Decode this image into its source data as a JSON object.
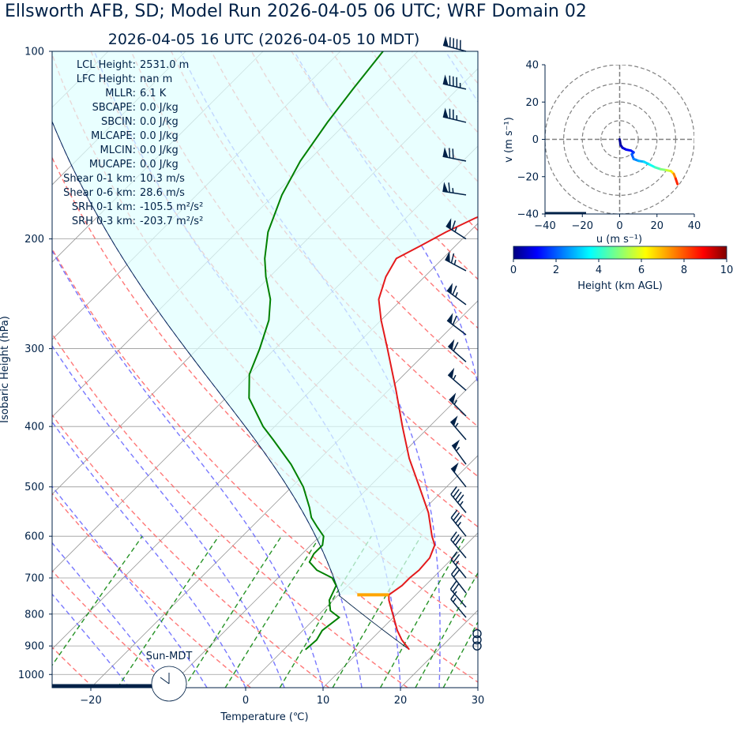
{
  "header": {
    "title": "Ellsworth AFB, SD; Model Run 2026-04-05 06 UTC; WRF Domain 02",
    "subtitle": "2026-04-05 16 UTC  (2026-04-05 10 MDT)"
  },
  "colors": {
    "text": "#002147",
    "temperature": "#e41a1c",
    "dewpoint": "#008000",
    "parcel": "#002147",
    "cape_fill": "#e0ffff",
    "dry_adiabat": "#ff6060",
    "moist_adiabat": "#6060ff",
    "mixing_ratio": "#008000",
    "isotherm": "#9a9a9a",
    "lcl_marker": "#ffa500"
  },
  "stats": [
    {
      "label": "LCL Height:",
      "value": "2531.0 m"
    },
    {
      "label": "LFC Height:",
      "value": "nan m"
    },
    {
      "label": "MLLR:",
      "value": "6.1 K"
    },
    {
      "label": "SBCAPE:",
      "value": "0.0 J/kg"
    },
    {
      "label": "SBCIN:",
      "value": "0.0 J/kg"
    },
    {
      "label": "MLCAPE:",
      "value": "0.0 J/kg"
    },
    {
      "label": "MLCIN:",
      "value": "0.0 J/kg"
    },
    {
      "label": "MUCAPE:",
      "value": "0.0 J/kg"
    },
    {
      "label": "Shear 0-1 km:",
      "value": "10.3 m/s"
    },
    {
      "label": "Shear 0-6 km:",
      "value": "28.6 m/s"
    },
    {
      "label": "SRH 0-1 km:",
      "value": "-105.5 m²/s²"
    },
    {
      "label": "SRH 0-3 km:",
      "value": "-203.7 m²/s²"
    }
  ],
  "clock_label": "Sun-MDT",
  "chart_data": [
    {
      "type": "line",
      "subtype": "skew-t",
      "xlabel": "Temperature (℃)",
      "ylabel": "Isobaric Height (hPa)",
      "xlim": [
        -25,
        30
      ],
      "ylim": [
        1050,
        100
      ],
      "x_ticks": [
        "−20",
        "0",
        "10",
        "20",
        "30"
      ],
      "x_tick_values": [
        -20,
        0,
        10,
        20,
        30
      ],
      "y_ticks": [
        "100",
        "200",
        "300",
        "400",
        "500",
        "600",
        "700",
        "800",
        "900",
        "1000"
      ],
      "y_tick_values": [
        100,
        200,
        300,
        400,
        500,
        600,
        700,
        800,
        900,
        1000
      ],
      "temperature": [
        [
          912,
          16.2
        ],
        [
          880,
          14.0
        ],
        [
          850,
          12.2
        ],
        [
          800,
          9.5
        ],
        [
          760,
          7.2
        ],
        [
          745,
          6.5
        ],
        [
          720,
          7.0
        ],
        [
          700,
          7.0
        ],
        [
          680,
          7.2
        ],
        [
          650,
          7.0
        ],
        [
          620,
          6.0
        ],
        [
          600,
          4.5
        ],
        [
          550,
          1.0
        ],
        [
          500,
          -3.5
        ],
        [
          450,
          -8.5
        ],
        [
          400,
          -13.5
        ],
        [
          350,
          -19.0
        ],
        [
          300,
          -25.5
        ],
        [
          270,
          -30.0
        ],
        [
          250,
          -33.0
        ],
        [
          230,
          -35.0
        ],
        [
          215,
          -36.0
        ],
        [
          205,
          -34.5
        ],
        [
          195,
          -33.0
        ],
        [
          185,
          -31.0
        ],
        [
          175,
          -27.5
        ],
        [
          165,
          -22.5
        ],
        [
          155,
          -18.5
        ],
        [
          145,
          -13.0
        ],
        [
          135,
          -8.5
        ],
        [
          125,
          -4.5
        ],
        [
          112,
          -2.0
        ],
        [
          100,
          1.0
        ]
      ],
      "dewpoint": [
        [
          912,
          2.8
        ],
        [
          880,
          3.0
        ],
        [
          850,
          2.5
        ],
        [
          810,
          3.0
        ],
        [
          790,
          1.0
        ],
        [
          760,
          -0.5
        ],
        [
          720,
          -1.5
        ],
        [
          700,
          -3.0
        ],
        [
          680,
          -6.0
        ],
        [
          660,
          -8.0
        ],
        [
          640,
          -8.5
        ],
        [
          620,
          -8.5
        ],
        [
          600,
          -9.5
        ],
        [
          580,
          -11.5
        ],
        [
          560,
          -13.5
        ],
        [
          540,
          -15.0
        ],
        [
          500,
          -18.5
        ],
        [
          460,
          -23.0
        ],
        [
          420,
          -28.5
        ],
        [
          400,
          -31.5
        ],
        [
          360,
          -37.0
        ],
        [
          330,
          -40.0
        ],
        [
          300,
          -42.0
        ],
        [
          270,
          -44.5
        ],
        [
          250,
          -47.0
        ],
        [
          230,
          -50.5
        ],
        [
          215,
          -53.0
        ],
        [
          195,
          -56.0
        ],
        [
          170,
          -59.0
        ],
        [
          150,
          -61.0
        ],
        [
          130,
          -62.5
        ],
        [
          115,
          -63.5
        ],
        [
          100,
          -64.5
        ]
      ],
      "lcl_pressure": 745
    },
    {
      "type": "line",
      "subtype": "hodograph",
      "xlabel": "u (m s⁻¹)",
      "ylabel": "v (m s⁻¹)",
      "xlim": [
        -40,
        40
      ],
      "ylim": [
        -40,
        40
      ],
      "x_ticks": [
        "−40",
        "−20",
        "0",
        "20",
        "40"
      ],
      "y_ticks": [
        "−40",
        "−20",
        "0",
        "20",
        "40"
      ],
      "points": [
        {
          "u": 0,
          "v": 0,
          "h": 0.0
        },
        {
          "u": 0.5,
          "v": -3,
          "h": 0.3
        },
        {
          "u": 1.5,
          "v": -4.5,
          "h": 0.6
        },
        {
          "u": 3.5,
          "v": -5.5,
          "h": 0.9
        },
        {
          "u": 6,
          "v": -6,
          "h": 1.2
        },
        {
          "u": 7.5,
          "v": -7,
          "h": 1.5
        },
        {
          "u": 6.5,
          "v": -8,
          "h": 1.8
        },
        {
          "u": 7.5,
          "v": -10.5,
          "h": 2.2
        },
        {
          "u": 10,
          "v": -11.5,
          "h": 2.6
        },
        {
          "u": 13,
          "v": -12,
          "h": 3.0
        },
        {
          "u": 16,
          "v": -13.5,
          "h": 3.5
        },
        {
          "u": 19,
          "v": -15,
          "h": 4.0
        },
        {
          "u": 22,
          "v": -16,
          "h": 4.6
        },
        {
          "u": 25,
          "v": -16.5,
          "h": 5.3
        },
        {
          "u": 27.5,
          "v": -17,
          "h": 6.0
        },
        {
          "u": 29,
          "v": -18.5,
          "h": 7.0
        },
        {
          "u": 30,
          "v": -21,
          "h": 8.0
        },
        {
          "u": 31,
          "v": -24,
          "h": 9.0
        }
      ],
      "rings": [
        10,
        20,
        30,
        40
      ]
    }
  ],
  "colorbar": {
    "label": "Height (km AGL)",
    "ticks": [
      "0",
      "2",
      "4",
      "6",
      "8",
      "10"
    ],
    "range": [
      0,
      10
    ]
  },
  "wind_barbs": [
    {
      "p": 100,
      "u": 45,
      "v": -12
    },
    {
      "p": 115,
      "u": 43,
      "v": -10
    },
    {
      "p": 130,
      "u": 38,
      "v": -9
    },
    {
      "p": 150,
      "u": 35,
      "v": -7
    },
    {
      "p": 170,
      "u": 32,
      "v": -5
    },
    {
      "p": 200,
      "u": 28,
      "v": -18
    },
    {
      "p": 225,
      "u": 30,
      "v": -16
    },
    {
      "p": 255,
      "u": 27,
      "v": -20
    },
    {
      "p": 285,
      "u": 25,
      "v": -19
    },
    {
      "p": 315,
      "u": 24,
      "v": -21
    },
    {
      "p": 350,
      "u": 22,
      "v": -19
    },
    {
      "p": 385,
      "u": 20,
      "v": -20
    },
    {
      "p": 420,
      "u": 18,
      "v": -21
    },
    {
      "p": 460,
      "u": 16,
      "v": -22
    },
    {
      "p": 500,
      "u": 16,
      "v": -20
    },
    {
      "p": 550,
      "u": 14,
      "v": -17
    },
    {
      "p": 600,
      "u": 12,
      "v": -15
    },
    {
      "p": 650,
      "u": 10,
      "v": -12
    },
    {
      "p": 700,
      "u": 8,
      "v": -10
    },
    {
      "p": 740,
      "u": 7,
      "v": -9
    },
    {
      "p": 780,
      "u": 6,
      "v": -7
    },
    {
      "p": 810,
      "u": 5,
      "v": -6
    },
    {
      "p": 860,
      "u": 0,
      "v": 0
    },
    {
      "p": 880,
      "u": 0,
      "v": 0
    },
    {
      "p": 900,
      "u": 0,
      "v": 0
    }
  ]
}
